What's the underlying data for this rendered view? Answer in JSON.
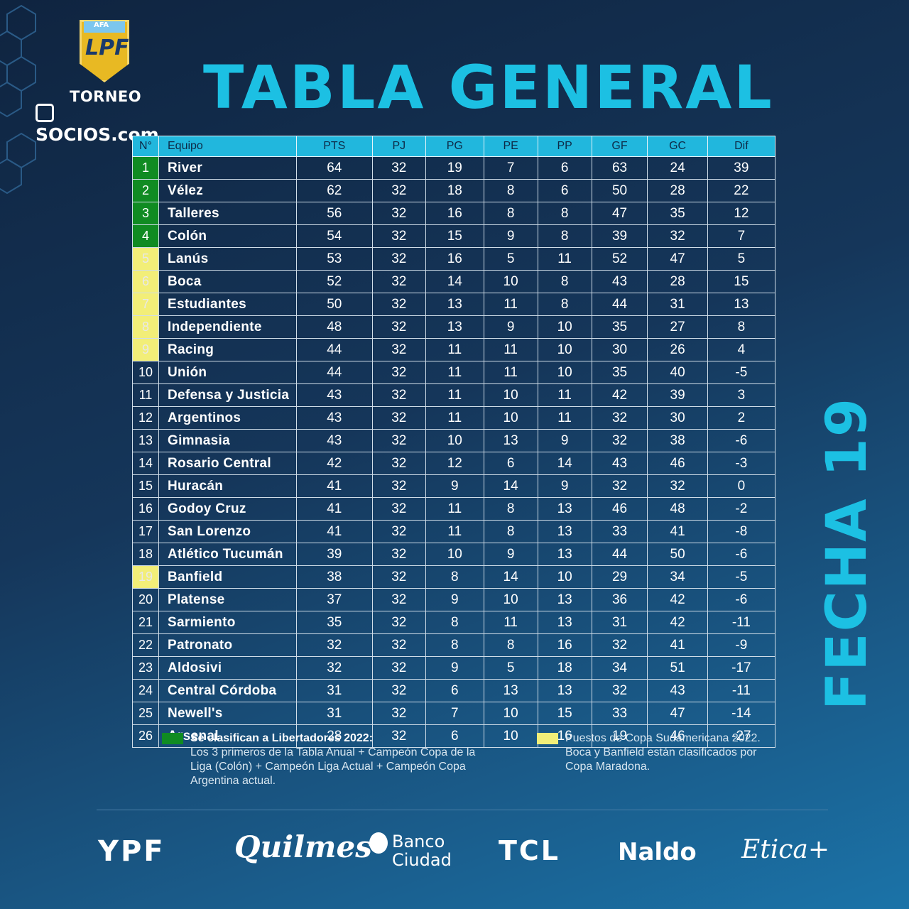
{
  "header": {
    "title": "TABLA GENERAL",
    "fecha": "FECHA 19",
    "logo_afa": "AFA",
    "logo_lpf": "LPF",
    "logo_torneo": "TORNEO",
    "logo_socios": "SOCIOS.com"
  },
  "table": {
    "columns": [
      "N°",
      "Equipo",
      "PTS",
      "PJ",
      "PG",
      "PE",
      "PP",
      "GF",
      "GC",
      "Dif"
    ],
    "rows": [
      {
        "pos": "1",
        "team": "River",
        "pts": "64",
        "pj": "32",
        "pg": "19",
        "pe": "7",
        "pp": "6",
        "gf": "63",
        "gc": "24",
        "dif": "39",
        "zone": "green"
      },
      {
        "pos": "2",
        "team": "Vélez",
        "pts": "62",
        "pj": "32",
        "pg": "18",
        "pe": "8",
        "pp": "6",
        "gf": "50",
        "gc": "28",
        "dif": "22",
        "zone": "green"
      },
      {
        "pos": "3",
        "team": "Talleres",
        "pts": "56",
        "pj": "32",
        "pg": "16",
        "pe": "8",
        "pp": "8",
        "gf": "47",
        "gc": "35",
        "dif": "12",
        "zone": "green"
      },
      {
        "pos": "4",
        "team": "Colón",
        "pts": "54",
        "pj": "32",
        "pg": "15",
        "pe": "9",
        "pp": "8",
        "gf": "39",
        "gc": "32",
        "dif": "7",
        "zone": "green"
      },
      {
        "pos": "5",
        "team": "Lanús",
        "pts": "53",
        "pj": "32",
        "pg": "16",
        "pe": "5",
        "pp": "11",
        "gf": "52",
        "gc": "47",
        "dif": "5",
        "zone": "yellow"
      },
      {
        "pos": "6",
        "team": "Boca",
        "pts": "52",
        "pj": "32",
        "pg": "14",
        "pe": "10",
        "pp": "8",
        "gf": "43",
        "gc": "28",
        "dif": "15",
        "zone": "yellow"
      },
      {
        "pos": "7",
        "team": "Estudiantes",
        "pts": "50",
        "pj": "32",
        "pg": "13",
        "pe": "11",
        "pp": "8",
        "gf": "44",
        "gc": "31",
        "dif": "13",
        "zone": "yellow"
      },
      {
        "pos": "8",
        "team": "Independiente",
        "pts": "48",
        "pj": "32",
        "pg": "13",
        "pe": "9",
        "pp": "10",
        "gf": "35",
        "gc": "27",
        "dif": "8",
        "zone": "yellow"
      },
      {
        "pos": "9",
        "team": "Racing",
        "pts": "44",
        "pj": "32",
        "pg": "11",
        "pe": "11",
        "pp": "10",
        "gf": "30",
        "gc": "26",
        "dif": "4",
        "zone": "yellow"
      },
      {
        "pos": "10",
        "team": "Unión",
        "pts": "44",
        "pj": "32",
        "pg": "11",
        "pe": "11",
        "pp": "10",
        "gf": "35",
        "gc": "40",
        "dif": "-5",
        "zone": ""
      },
      {
        "pos": "11",
        "team": "Defensa y Justicia",
        "pts": "43",
        "pj": "32",
        "pg": "11",
        "pe": "10",
        "pp": "11",
        "gf": "42",
        "gc": "39",
        "dif": "3",
        "zone": ""
      },
      {
        "pos": "12",
        "team": "Argentinos",
        "pts": "43",
        "pj": "32",
        "pg": "11",
        "pe": "10",
        "pp": "11",
        "gf": "32",
        "gc": "30",
        "dif": "2",
        "zone": ""
      },
      {
        "pos": "13",
        "team": "Gimnasia",
        "pts": "43",
        "pj": "32",
        "pg": "10",
        "pe": "13",
        "pp": "9",
        "gf": "32",
        "gc": "38",
        "dif": "-6",
        "zone": ""
      },
      {
        "pos": "14",
        "team": "Rosario Central",
        "pts": "42",
        "pj": "32",
        "pg": "12",
        "pe": "6",
        "pp": "14",
        "gf": "43",
        "gc": "46",
        "dif": "-3",
        "zone": ""
      },
      {
        "pos": "15",
        "team": "Huracán",
        "pts": "41",
        "pj": "32",
        "pg": "9",
        "pe": "14",
        "pp": "9",
        "gf": "32",
        "gc": "32",
        "dif": "0",
        "zone": ""
      },
      {
        "pos": "16",
        "team": "Godoy Cruz",
        "pts": "41",
        "pj": "32",
        "pg": "11",
        "pe": "8",
        "pp": "13",
        "gf": "46",
        "gc": "48",
        "dif": "-2",
        "zone": ""
      },
      {
        "pos": "17",
        "team": "San Lorenzo",
        "pts": "41",
        "pj": "32",
        "pg": "11",
        "pe": "8",
        "pp": "13",
        "gf": "33",
        "gc": "41",
        "dif": "-8",
        "zone": ""
      },
      {
        "pos": "18",
        "team": "Atlético Tucumán",
        "pts": "39",
        "pj": "32",
        "pg": "10",
        "pe": "9",
        "pp": "13",
        "gf": "44",
        "gc": "50",
        "dif": "-6",
        "zone": ""
      },
      {
        "pos": "19",
        "team": "Banfield",
        "pts": "38",
        "pj": "32",
        "pg": "8",
        "pe": "14",
        "pp": "10",
        "gf": "29",
        "gc": "34",
        "dif": "-5",
        "zone": "yellow"
      },
      {
        "pos": "20",
        "team": "Platense",
        "pts": "37",
        "pj": "32",
        "pg": "9",
        "pe": "10",
        "pp": "13",
        "gf": "36",
        "gc": "42",
        "dif": "-6",
        "zone": ""
      },
      {
        "pos": "21",
        "team": "Sarmiento",
        "pts": "35",
        "pj": "32",
        "pg": "8",
        "pe": "11",
        "pp": "13",
        "gf": "31",
        "gc": "42",
        "dif": "-11",
        "zone": ""
      },
      {
        "pos": "22",
        "team": "Patronato",
        "pts": "32",
        "pj": "32",
        "pg": "8",
        "pe": "8",
        "pp": "16",
        "gf": "32",
        "gc": "41",
        "dif": "-9",
        "zone": ""
      },
      {
        "pos": "23",
        "team": "Aldosivi",
        "pts": "32",
        "pj": "32",
        "pg": "9",
        "pe": "5",
        "pp": "18",
        "gf": "34",
        "gc": "51",
        "dif": "-17",
        "zone": ""
      },
      {
        "pos": "24",
        "team": "Central Córdoba",
        "pts": "31",
        "pj": "32",
        "pg": "6",
        "pe": "13",
        "pp": "13",
        "gf": "32",
        "gc": "43",
        "dif": "-11",
        "zone": ""
      },
      {
        "pos": "25",
        "team": "Newell's",
        "pts": "31",
        "pj": "32",
        "pg": "7",
        "pe": "10",
        "pp": "15",
        "gf": "33",
        "gc": "47",
        "dif": "-14",
        "zone": ""
      },
      {
        "pos": "26",
        "team": "Arsenal",
        "pts": "28",
        "pj": "32",
        "pg": "6",
        "pe": "10",
        "pp": "16",
        "gf": "19",
        "gc": "46",
        "dif": "-27",
        "zone": ""
      }
    ]
  },
  "legend": {
    "green_color": "#108b22",
    "yellow_color": "#f2ee78",
    "green_title": "Se clasifican a Libertadores 2022:",
    "green_text": "Los 3 primeros de la Tabla Anual  + Campeón Copa de la Liga (Colón) + Campeón Liga Actual + Campeón Copa Argentina actual.",
    "yellow_text": "Puestos de Copa Sudamericana 2022. Boca y Banfield están clasificados por Copa Maradona."
  },
  "sponsors": {
    "ypf": "YPF",
    "quilmes": "Quilmes",
    "banco_line1": "Banco",
    "banco_line2": "Ciudad",
    "tcl": "TCL",
    "naldo": "Naldo",
    "etica": "Etica+"
  }
}
